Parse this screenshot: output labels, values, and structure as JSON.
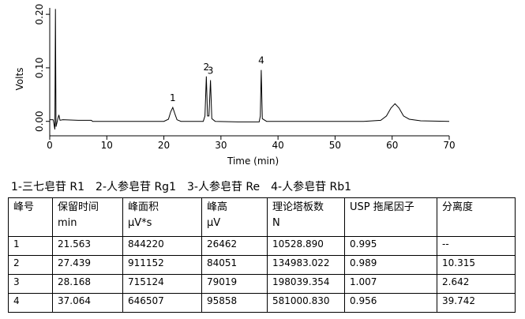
{
  "chart_data": {
    "type": "line",
    "xlabel": "Time (min)",
    "ylabel": "Volts",
    "x": [
      0,
      0.6,
      0.9,
      1.0,
      1.1,
      1.4,
      1.6,
      1.8,
      2.3,
      5,
      7.3,
      7.5,
      10,
      15,
      20,
      20.8,
      21.2,
      21.56,
      21.9,
      22.3,
      23,
      26.9,
      27.2,
      27.44,
      27.65,
      27.9,
      28.17,
      28.4,
      29,
      33,
      36.7,
      36.9,
      37.06,
      37.25,
      38,
      45,
      55,
      58,
      59,
      59.8,
      60.5,
      61.2,
      62,
      63,
      65,
      70
    ],
    "series": [
      {
        "color": "#000000",
        "values": [
          0.003,
          0.003,
          -0.015,
          0.21,
          -0.01,
          0.004,
          0.012,
          0.002,
          0.003,
          0.002,
          0.002,
          0.0,
          0.0,
          0.0,
          0.0,
          0.004,
          0.018,
          0.026,
          0.015,
          0.003,
          0.0,
          0.0,
          0.01,
          0.084,
          0.01,
          0.01,
          0.077,
          0.005,
          0.0,
          -0.001,
          -0.001,
          0.01,
          0.096,
          0.005,
          0.0,
          0.0,
          0.0,
          0.002,
          0.01,
          0.025,
          0.033,
          0.025,
          0.01,
          0.004,
          0.001,
          0.0
        ]
      }
    ],
    "xlim": [
      0,
      70
    ],
    "xticks": [
      0,
      10,
      20,
      30,
      40,
      50,
      60,
      70
    ],
    "ylim": [
      -0.027,
      0.212
    ],
    "yticks": [
      {
        "value": 0,
        "label": "0.00"
      },
      {
        "value": 0.1,
        "label": "0.10"
      },
      {
        "value": 0.2,
        "label": "0.20"
      }
    ],
    "annotations": [
      {
        "text": "1",
        "x": 21.56
      },
      {
        "text": "2",
        "x": 27.44
      },
      {
        "text": "3",
        "x": 28.17
      },
      {
        "text": "4",
        "x": 37.06
      }
    ]
  },
  "caption": [
    "1-三七皂苷 R1",
    "2-人参皂苷 Rg1",
    "3-人参皂苷 Re",
    "4-人参皂苷 Rb1"
  ],
  "table": {
    "header": [
      [
        "峰号"
      ],
      [
        "保留时间",
        "min"
      ],
      [
        "峰面积",
        "μV*s"
      ],
      [
        "峰高",
        "μV"
      ],
      [
        "理论塔板数",
        "N"
      ],
      [
        "USP 拖尾因子"
      ],
      [
        "分离度"
      ]
    ],
    "rows": [
      [
        "1",
        "21.563",
        "844220",
        "26462",
        "10528.890",
        "0.995",
        "--"
      ],
      [
        "2",
        "27.439",
        "911152",
        "84051",
        "134983.022",
        "0.989",
        "10.315"
      ],
      [
        "3",
        "28.168",
        "715124",
        "79019",
        "198039.354",
        "1.007",
        "2.642"
      ],
      [
        "4",
        "37.064",
        "646507",
        "95858",
        "581000.830",
        "0.956",
        "39.742"
      ]
    ]
  }
}
